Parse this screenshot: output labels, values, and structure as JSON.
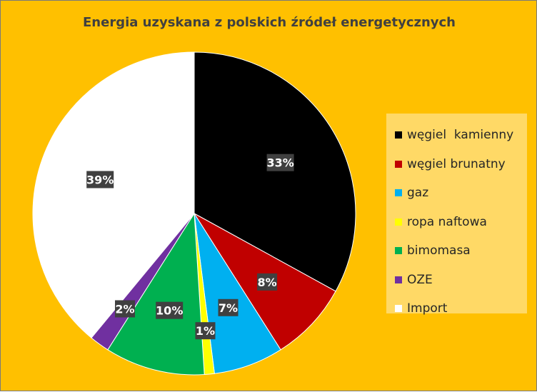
{
  "chart_data": {
    "type": "pie",
    "title": "Energia uzyskana z polskich źródeł energetycznych",
    "legend_position": "right",
    "slices": [
      {
        "name": "węgiel  kamienny",
        "value": 33,
        "label": "33%",
        "color": "#000000"
      },
      {
        "name": "węgiel brunatny",
        "value": 8,
        "label": "8%",
        "color": "#C00000"
      },
      {
        "name": "gaz",
        "value": 7,
        "label": "7%",
        "color": "#00B0F0"
      },
      {
        "name": "ropa naftowa",
        "value": 1,
        "label": "1%",
        "color": "#FFFF00"
      },
      {
        "name": "bimomasa",
        "value": 10,
        "label": "10%",
        "color": "#00B050"
      },
      {
        "name": "OZE",
        "value": 2,
        "label": "2%",
        "color": "#7030A0"
      },
      {
        "name": "Import",
        "value": 39,
        "label": "39%",
        "color": "#FFFFFF"
      }
    ],
    "label_box_color": "#404040"
  }
}
